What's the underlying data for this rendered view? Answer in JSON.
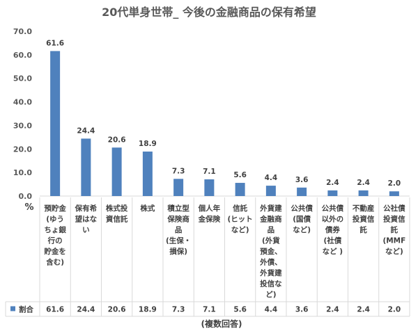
{
  "chart_data": {
    "type": "bar",
    "title": "20代単身世帯_ 今後の金融商品の保有希望",
    "ylabel": "%",
    "ylim": [
      0,
      70
    ],
    "yticks": [
      "0.0",
      "10.0",
      "20.0",
      "30.0",
      "40.0",
      "50.0",
      "60.0",
      "70.0"
    ],
    "grid": false,
    "color": "#4f81bd",
    "categories": [
      [
        "預貯金",
        "(ゆう",
        "ちょ銀",
        "行の",
        "貯金を",
        "含む)"
      ],
      [
        "保有希",
        "望はな",
        "い"
      ],
      [
        "株式投",
        "資信託"
      ],
      [
        "株式"
      ],
      [
        "積立型",
        "保険商",
        "品",
        "(生保・",
        "損保)"
      ],
      [
        "個人年",
        "金保険"
      ],
      [
        "信託",
        "(ヒット",
        "など)"
      ],
      [
        "外貨建",
        "金融商",
        "品",
        "(外貨",
        "預金、",
        "外債、",
        "外貨建",
        "投信な",
        "ど)"
      ],
      [
        "公共債",
        "(国債",
        "など)"
      ],
      [
        "公共債",
        "以外の",
        "債券",
        "(社債",
        "など )"
      ],
      [
        "不動産",
        "投資信",
        "託"
      ],
      [
        "公社債",
        "投資信",
        "託",
        "(MMF",
        "など)"
      ]
    ],
    "series": [
      {
        "name": "割合",
        "values": [
          61.6,
          24.4,
          20.6,
          18.9,
          7.3,
          7.1,
          5.6,
          4.4,
          3.6,
          2.4,
          2.4,
          2.0
        ],
        "labels": [
          "61.6",
          "24.4",
          "20.6",
          "18.9",
          "7.3",
          "7.1",
          "5.6",
          "4.4",
          "3.6",
          "2.4",
          "2.4",
          "2.0"
        ]
      }
    ],
    "legend": "table-row-left",
    "data_table": true,
    "note": "(複数回答)"
  }
}
